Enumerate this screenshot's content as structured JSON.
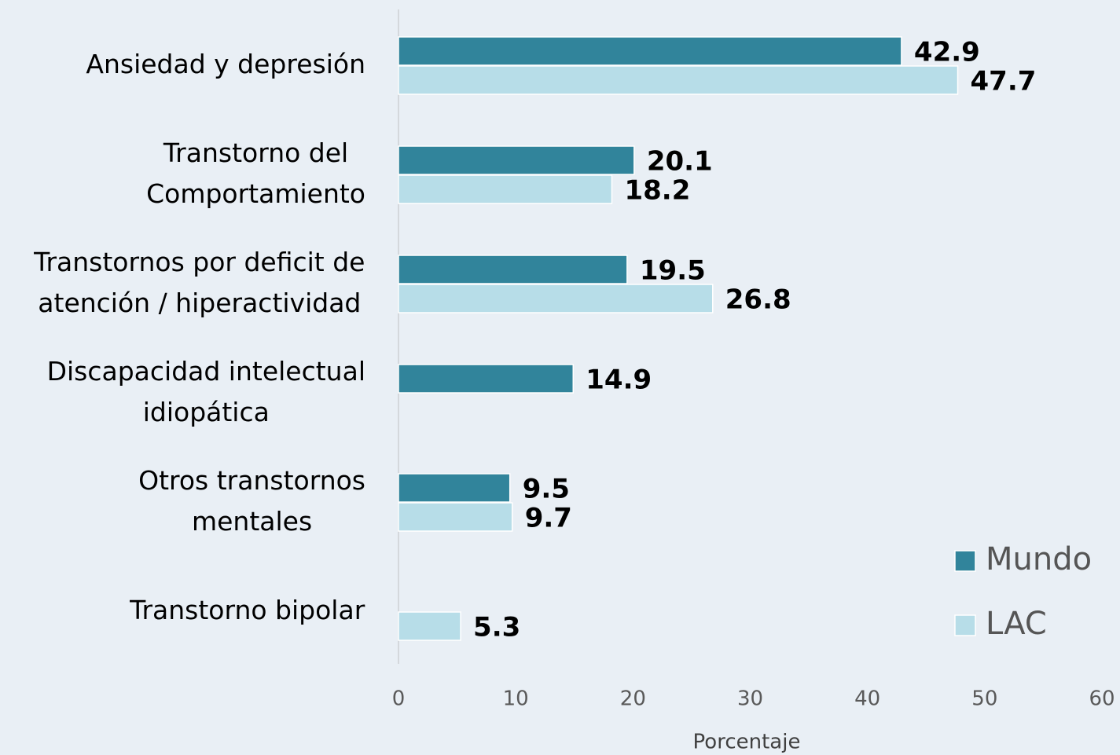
{
  "chart_data": {
    "type": "hbar",
    "categories": [
      "Ansiedad y depresión",
      "Transtorno del\nComportamiento",
      "Transtornos por deficit de\natención / hiperactividad",
      "Discapacidad intelectual\nidiopática",
      "Otros transtornos\nmentales",
      "Transtorno bipolar"
    ],
    "series": [
      {
        "name": "Mundo",
        "color": "#31849b",
        "values": [
          42.9,
          20.1,
          19.5,
          14.9,
          9.5,
          null
        ]
      },
      {
        "name": "LAC",
        "color": "#b7dde8",
        "values": [
          47.7,
          18.2,
          26.8,
          null,
          9.7,
          5.3
        ]
      }
    ],
    "xlabel": "Porcentaje",
    "xlim": [
      0,
      60
    ],
    "xticks": [
      0,
      10,
      20,
      30,
      40,
      50,
      60
    ],
    "legend": "lower right"
  }
}
